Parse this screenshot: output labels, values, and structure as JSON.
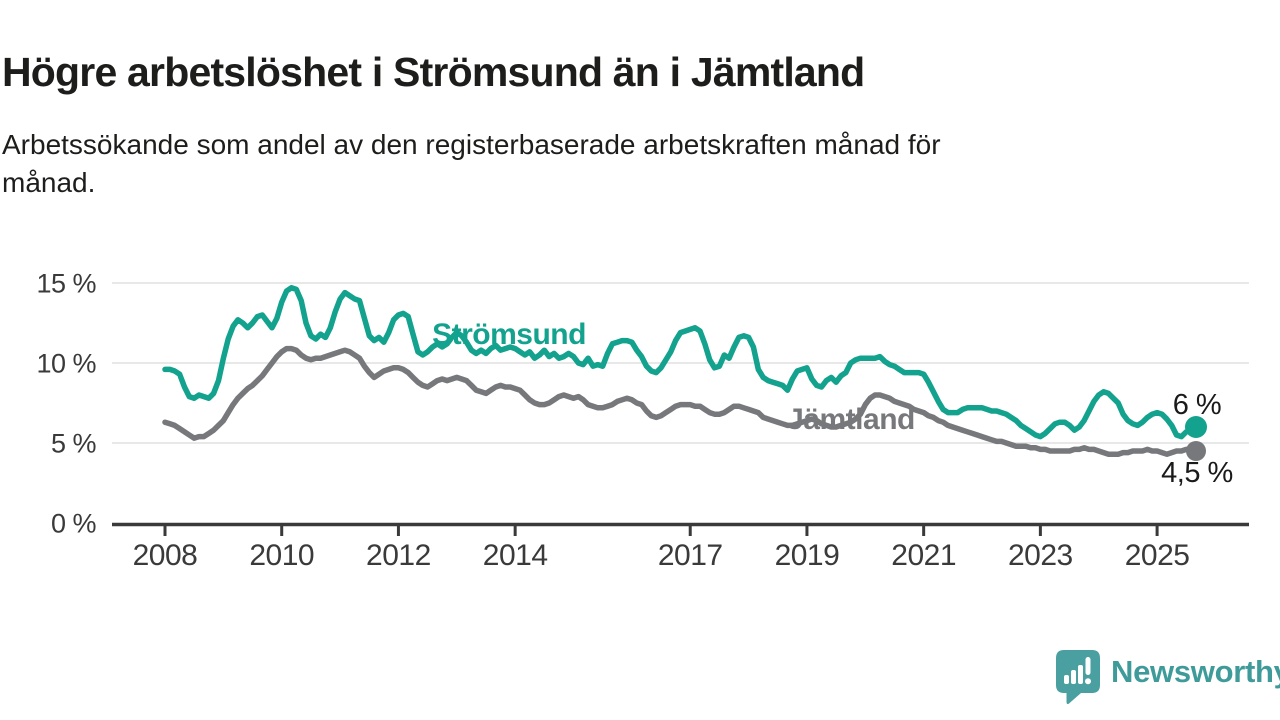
{
  "title": "Högre arbetslöshet i Strömsund än i Jämtland",
  "subtitle": "Arbetssökande som andel av den registerbaserade arbetskraften månad för månad.",
  "subtitle_lines": [
    "Arbetssökande som andel av den registerbaserade arbetskraften månad för",
    "månad."
  ],
  "branding": {
    "logo_text": "Newsworthy",
    "logo_color": "#4a9fa0",
    "logo_glyph": "bar-chart-exclamation-speech-bubble"
  },
  "chart_data": {
    "type": "line",
    "title": "Högre arbetslöshet i Strömsund än i Jämtland",
    "x_unit": "month",
    "x_start": "2008-01",
    "x_end": "2025-09",
    "xticks": [
      2008,
      2010,
      2012,
      2014,
      2017,
      2019,
      2021,
      2023,
      2025
    ],
    "yticks": [
      {
        "value": 0,
        "label": "0 %"
      },
      {
        "value": 5,
        "label": "5 %"
      },
      {
        "value": 10,
        "label": "10 %"
      },
      {
        "value": 15,
        "label": "15 %"
      }
    ],
    "ylim": [
      0,
      16.5
    ],
    "grid": "horizontal",
    "legend_position": "inline-labels",
    "axis_color": "#3a3a3a",
    "grid_color": "#e0e0e0",
    "series": [
      {
        "name": "Strömsund",
        "color": "#12a28e",
        "end_label": "6 %",
        "end_value": 6.0,
        "values": [
          9.6,
          9.6,
          9.5,
          9.3,
          8.5,
          7.9,
          7.8,
          8.0,
          7.9,
          7.8,
          8.1,
          8.9,
          10.3,
          11.5,
          12.3,
          12.7,
          12.5,
          12.2,
          12.5,
          12.9,
          13.0,
          12.6,
          12.2,
          12.8,
          13.8,
          14.5,
          14.7,
          14.6,
          13.9,
          12.5,
          11.7,
          11.5,
          11.8,
          11.6,
          12.2,
          13.2,
          14.0,
          14.4,
          14.2,
          14.0,
          13.9,
          12.8,
          11.7,
          11.4,
          11.6,
          11.3,
          11.9,
          12.7,
          13.0,
          13.1,
          12.9,
          11.8,
          10.7,
          10.5,
          10.7,
          11.0,
          11.2,
          11.0,
          11.2,
          11.6,
          11.9,
          11.7,
          11.3,
          10.8,
          10.6,
          10.8,
          10.6,
          10.9,
          11.1,
          10.8,
          10.9,
          11.0,
          10.9,
          10.7,
          10.5,
          10.7,
          10.3,
          10.5,
          10.8,
          10.4,
          10.6,
          10.3,
          10.4,
          10.6,
          10.4,
          10.0,
          9.9,
          10.3,
          9.8,
          9.9,
          9.8,
          10.6,
          11.2,
          11.3,
          11.4,
          11.4,
          11.3,
          10.8,
          10.4,
          9.8,
          9.5,
          9.4,
          9.7,
          10.2,
          10.7,
          11.4,
          11.9,
          12.0,
          12.1,
          12.2,
          12.0,
          11.2,
          10.2,
          9.7,
          9.8,
          10.5,
          10.3,
          11.0,
          11.6,
          11.7,
          11.6,
          11.0,
          9.6,
          9.1,
          8.9,
          8.8,
          8.7,
          8.6,
          8.3,
          9.0,
          9.5,
          9.6,
          9.7,
          9.0,
          8.6,
          8.5,
          8.9,
          9.1,
          8.8,
          9.2,
          9.4,
          10.0,
          10.2,
          10.3,
          10.3,
          10.3,
          10.3,
          10.4,
          10.1,
          9.9,
          9.8,
          9.6,
          9.4,
          9.4,
          9.4,
          9.4,
          9.3,
          8.8,
          8.2,
          7.6,
          7.1,
          6.9,
          6.9,
          6.9,
          7.1,
          7.2,
          7.2,
          7.2,
          7.2,
          7.1,
          7.0,
          7.0,
          6.9,
          6.8,
          6.6,
          6.4,
          6.1,
          5.9,
          5.7,
          5.5,
          5.4,
          5.6,
          5.9,
          6.2,
          6.3,
          6.3,
          6.1,
          5.8,
          6.0,
          6.4,
          7.0,
          7.6,
          8.0,
          8.2,
          8.1,
          7.8,
          7.5,
          6.8,
          6.4,
          6.2,
          6.1,
          6.3,
          6.6,
          6.8,
          6.9,
          6.8,
          6.5,
          6.1,
          5.5,
          5.4,
          5.7,
          5.8,
          6.0
        ]
      },
      {
        "name": "Jämtland",
        "color": "#77787b",
        "end_label": "4,5 %",
        "end_value": 4.5,
        "values": [
          6.3,
          6.2,
          6.1,
          5.9,
          5.7,
          5.5,
          5.3,
          5.4,
          5.4,
          5.6,
          5.8,
          6.1,
          6.4,
          6.9,
          7.4,
          7.8,
          8.1,
          8.4,
          8.6,
          8.9,
          9.2,
          9.6,
          10.0,
          10.4,
          10.7,
          10.9,
          10.9,
          10.8,
          10.5,
          10.3,
          10.2,
          10.3,
          10.3,
          10.4,
          10.5,
          10.6,
          10.7,
          10.8,
          10.7,
          10.5,
          10.3,
          9.8,
          9.4,
          9.1,
          9.3,
          9.5,
          9.6,
          9.7,
          9.7,
          9.6,
          9.4,
          9.1,
          8.8,
          8.6,
          8.5,
          8.7,
          8.9,
          9.0,
          8.9,
          9.0,
          9.1,
          9.0,
          8.9,
          8.6,
          8.3,
          8.2,
          8.1,
          8.3,
          8.5,
          8.6,
          8.5,
          8.5,
          8.4,
          8.3,
          8.0,
          7.7,
          7.5,
          7.4,
          7.4,
          7.5,
          7.7,
          7.9,
          8.0,
          7.9,
          7.8,
          7.9,
          7.7,
          7.4,
          7.3,
          7.2,
          7.2,
          7.3,
          7.4,
          7.6,
          7.7,
          7.8,
          7.7,
          7.5,
          7.4,
          7.0,
          6.7,
          6.6,
          6.7,
          6.9,
          7.1,
          7.3,
          7.4,
          7.4,
          7.4,
          7.3,
          7.3,
          7.1,
          6.9,
          6.8,
          6.8,
          6.9,
          7.1,
          7.3,
          7.3,
          7.2,
          7.1,
          7.0,
          6.9,
          6.6,
          6.5,
          6.4,
          6.3,
          6.2,
          6.1,
          6.1,
          6.2,
          6.3,
          6.4,
          6.5,
          6.4,
          6.2,
          6.1,
          6.0,
          6.0,
          6.1,
          6.2,
          6.3,
          6.5,
          6.8,
          7.4,
          7.8,
          8.0,
          8.0,
          7.9,
          7.8,
          7.6,
          7.5,
          7.4,
          7.3,
          7.1,
          7.0,
          6.9,
          6.7,
          6.6,
          6.4,
          6.3,
          6.1,
          6.0,
          5.9,
          5.8,
          5.7,
          5.6,
          5.5,
          5.4,
          5.3,
          5.2,
          5.1,
          5.1,
          5.0,
          4.9,
          4.8,
          4.8,
          4.8,
          4.7,
          4.7,
          4.6,
          4.6,
          4.5,
          4.5,
          4.5,
          4.5,
          4.5,
          4.6,
          4.6,
          4.7,
          4.6,
          4.6,
          4.5,
          4.4,
          4.3,
          4.3,
          4.3,
          4.4,
          4.4,
          4.5,
          4.5,
          4.5,
          4.6,
          4.5,
          4.5,
          4.4,
          4.3,
          4.4,
          4.5,
          4.5,
          4.6,
          4.6,
          4.5
        ]
      }
    ]
  }
}
